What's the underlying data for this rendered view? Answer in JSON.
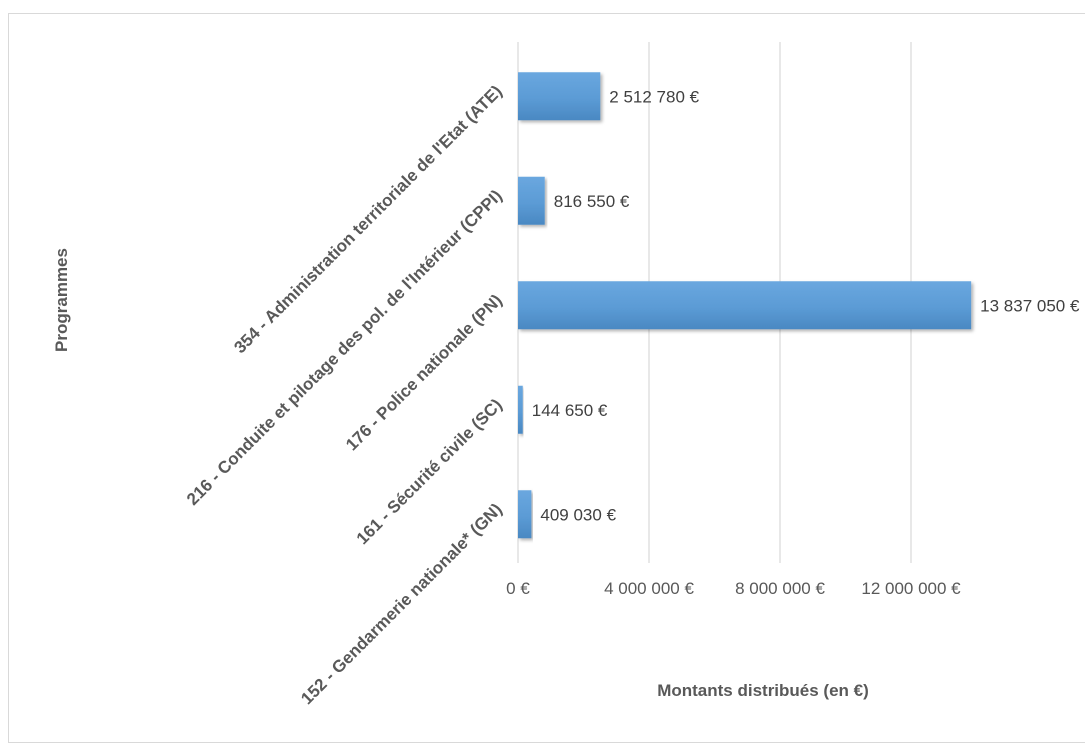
{
  "chart_data": {
    "type": "bar",
    "orientation": "horizontal",
    "categories": [
      "354 - Administration territoriale de l'Etat (ATE)",
      "216 - Conduite et pilotage des pol. de l'Intérieur (CPPI)",
      "176 - Police nationale (PN)",
      "161 - Sécurité civile (SC)",
      "152 - Gendarmerie nationale* (GN)"
    ],
    "values": [
      2512780,
      816550,
      13837050,
      144650,
      409030
    ],
    "data_labels": [
      "2 512 780 €",
      "816 550 €",
      "13 837 050 €",
      "144 650 €",
      "409 030 €"
    ],
    "xticks": [
      0,
      4000000,
      8000000,
      12000000
    ],
    "xtick_labels": [
      "0 €",
      "4 000 000 €",
      "8 000 000 €",
      "12 000 000 €"
    ],
    "xlim": [
      0,
      16000000
    ],
    "xlabel": "Montants distribués (en €)",
    "ylabel": "Programmes",
    "grid": true,
    "bar_color": "#5b9bd5",
    "grid_color": "#d9d9d9"
  }
}
